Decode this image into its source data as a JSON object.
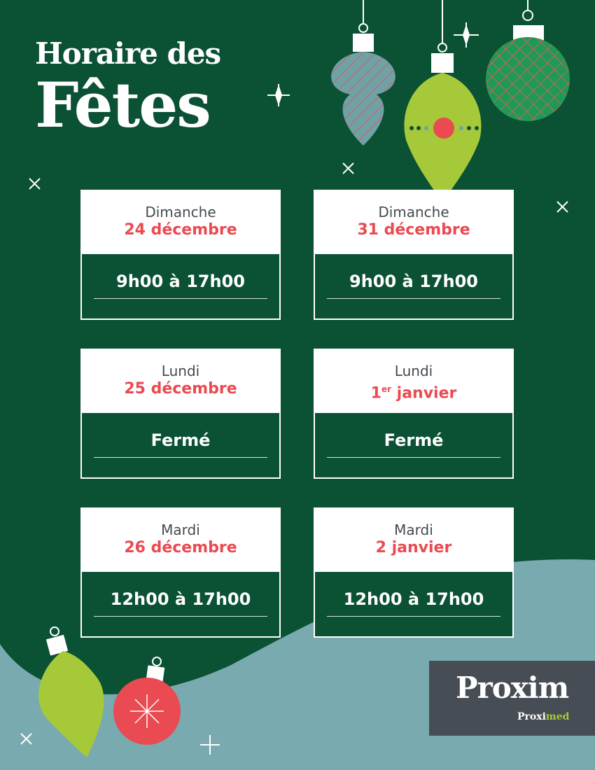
{
  "title": {
    "line1": "Horaire des",
    "line2": "Fêtes"
  },
  "schedule": [
    {
      "day": "Dimanche",
      "date": "24 décembre",
      "hours": "9h00 à 17h00"
    },
    {
      "day": "Dimanche",
      "date": "31 décembre",
      "hours": "9h00 à 17h00"
    },
    {
      "day": "Lundi",
      "date": "25 décembre",
      "hours": "Fermé"
    },
    {
      "day": "Lundi",
      "date_num": "1",
      "date_sup": "er",
      "date_rest": " janvier",
      "hours": "Fermé"
    },
    {
      "day": "Mardi",
      "date": "26 décembre",
      "hours": "12h00 à 17h00"
    },
    {
      "day": "Mardi",
      "date": "2 janvier",
      "hours": "12h00 à 17h00"
    }
  ],
  "logo": {
    "main": "Proxim",
    "sub_a": "Proxi",
    "sub_b": "med"
  },
  "colors": {
    "background": "#0b5134",
    "accent_red": "#ea4a51",
    "hill": "#78aab0",
    "lime": "#a6c93a"
  }
}
